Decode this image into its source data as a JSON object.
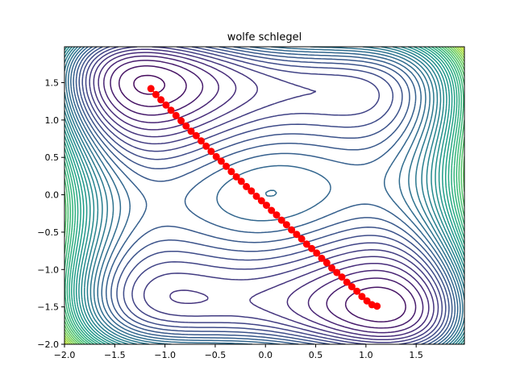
{
  "chart_data": {
    "type": "contour",
    "title": "wolfe schlegel",
    "xlabel": "",
    "ylabel": "",
    "xlim": [
      -2.0,
      1.98
    ],
    "ylim": [
      -2.0,
      1.98
    ],
    "xticks": [
      -2.0,
      -1.5,
      -1.0,
      -0.5,
      0.0,
      0.5,
      1.0,
      1.5
    ],
    "yticks": [
      -2.0,
      -1.5,
      -1.0,
      -0.5,
      0.0,
      0.5,
      1.0,
      1.5
    ],
    "xtick_labels": [
      "−2.0",
      "−1.5",
      "−1.0",
      "−0.5",
      "0.0",
      "0.5",
      "1.0",
      "1.5"
    ],
    "ytick_labels": [
      "−2.0",
      "−1.5",
      "−1.0",
      "−0.5",
      "0.0",
      "0.5",
      "1.0",
      "1.5"
    ],
    "grid": false,
    "colormap": "viridis",
    "path_color": "#ff0000",
    "path": {
      "x": [
        -1.14,
        -1.09,
        -1.04,
        -0.99,
        -0.94,
        -0.89,
        -0.84,
        -0.79,
        -0.74,
        -0.69,
        -0.64,
        -0.59,
        -0.54,
        -0.49,
        -0.44,
        -0.39,
        -0.34,
        -0.29,
        -0.24,
        -0.19,
        -0.14,
        -0.09,
        -0.04,
        0.01,
        0.06,
        0.11,
        0.16,
        0.21,
        0.26,
        0.31,
        0.36,
        0.41,
        0.46,
        0.51,
        0.56,
        0.61,
        0.66,
        0.71,
        0.76,
        0.81,
        0.86,
        0.91,
        0.96,
        1.01,
        1.06,
        1.11
      ],
      "y": [
        1.42,
        1.34,
        1.27,
        1.2,
        1.13,
        1.06,
        0.99,
        0.92,
        0.85,
        0.79,
        0.72,
        0.65,
        0.58,
        0.51,
        0.45,
        0.38,
        0.31,
        0.24,
        0.18,
        0.11,
        0.05,
        -0.02,
        -0.08,
        -0.14,
        -0.21,
        -0.27,
        -0.34,
        -0.4,
        -0.47,
        -0.53,
        -0.59,
        -0.66,
        -0.72,
        -0.78,
        -0.85,
        -0.91,
        -0.98,
        -1.04,
        -1.1,
        -1.17,
        -1.23,
        -1.29,
        -1.36,
        -1.42,
        -1.47,
        -1.49
      ]
    }
  }
}
